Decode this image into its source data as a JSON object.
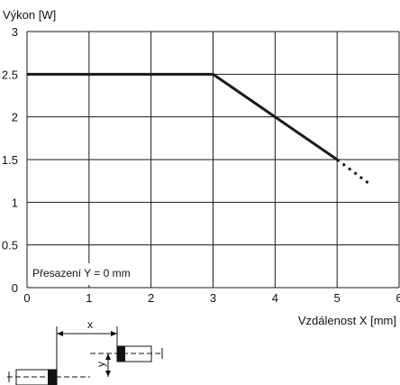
{
  "chart_data": {
    "type": "line",
    "ylabel": "Výkon [W]",
    "xlabel": "Vzdálenost X [mm]",
    "xlim": [
      0,
      6
    ],
    "ylim": [
      0,
      3
    ],
    "xticks": [
      "0",
      "1",
      "2",
      "3",
      "4",
      "5",
      "6"
    ],
    "yticks": [
      "0",
      "0.5",
      "1",
      "1.5",
      "2",
      "2.5",
      "3"
    ],
    "xtick_values": [
      0,
      1,
      2,
      3,
      4,
      5,
      6
    ],
    "ytick_values": [
      0,
      0.5,
      1,
      1.5,
      2,
      2.5,
      3
    ],
    "grid": true,
    "series": [
      {
        "x": [
          0,
          3,
          5
        ],
        "y": [
          2.5,
          2.5,
          1.5
        ],
        "color": "#1a1a1a",
        "style": "solid"
      },
      {
        "x": [
          5,
          5.55
        ],
        "y": [
          1.5,
          1.2
        ],
        "color": "#1a1a1a",
        "style": "dotted"
      }
    ],
    "annotation": "Přesazení Y = 0 mm"
  },
  "diagram": {
    "x_label": "x",
    "y_label": "y"
  }
}
